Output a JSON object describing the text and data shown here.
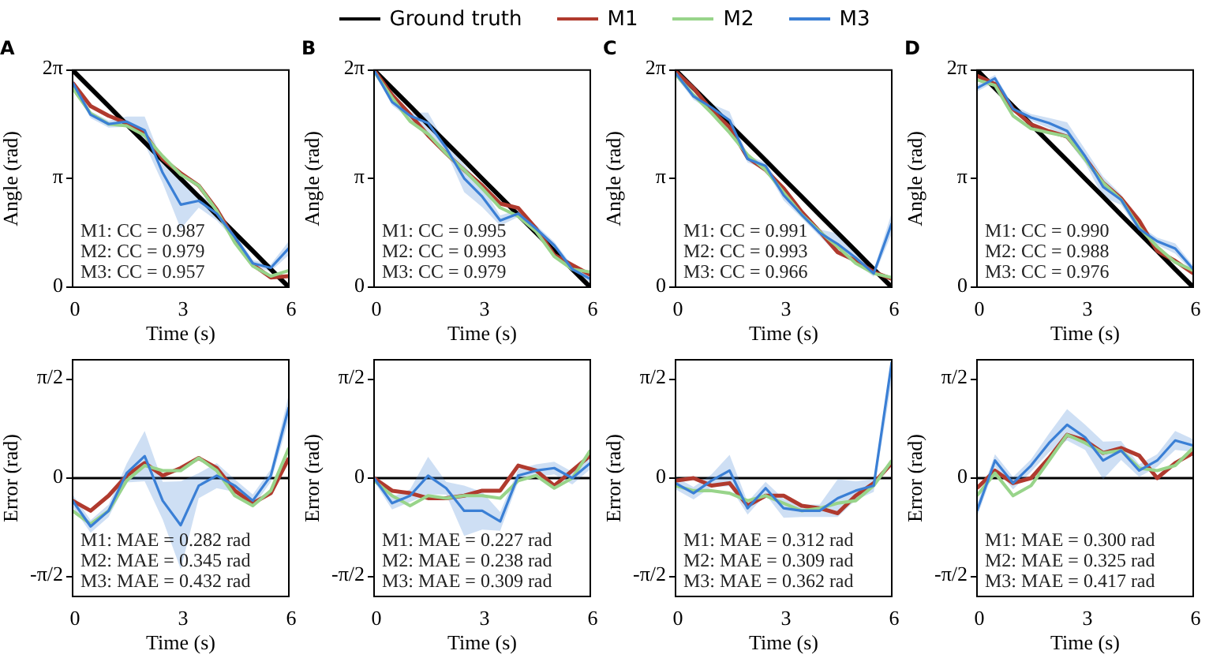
{
  "chart_data": [
    {
      "type": "line",
      "title": "A",
      "xlabel": "Time (s)",
      "ylabel": "Angle (rad)",
      "legend": "top",
      "x": [
        0,
        0.5,
        1,
        1.5,
        2,
        2.5,
        3,
        3.5,
        4,
        4.5,
        5,
        5.5,
        6
      ],
      "xlim": [
        0,
        6
      ],
      "xticks": [
        0,
        3,
        6
      ],
      "ylim": [
        0,
        6.283185
      ],
      "yticks": [
        {
          "value": 0,
          "label": "0"
        },
        {
          "value": 3.141593,
          "label": "π"
        },
        {
          "value": 6.283185,
          "label": "2π"
        }
      ],
      "grid": false,
      "series": [
        {
          "name": "Ground truth",
          "color": "#000000",
          "values": [
            6.28,
            5.76,
            5.24,
            4.71,
            4.19,
            3.67,
            3.14,
            2.62,
            2.09,
            1.57,
            1.05,
            0.52,
            0
          ]
        },
        {
          "name": "M1",
          "color": "#b03a2e",
          "values": [
            5.92,
            5.24,
            4.96,
            4.75,
            4.43,
            3.71,
            3.3,
            2.94,
            2.25,
            1.37,
            0.65,
            0.28,
            0.32
          ]
        },
        {
          "name": "M2",
          "color": "#98d48a",
          "values": [
            5.76,
            5.03,
            4.72,
            4.67,
            4.39,
            3.79,
            3.26,
            2.94,
            2.21,
            1.29,
            0.61,
            0.32,
            0.48
          ]
        },
        {
          "name": "M3",
          "color": "#3a7fd5",
          "values": [
            5.92,
            4.99,
            4.72,
            4.79,
            4.54,
            3.31,
            2.39,
            2.5,
            2.13,
            1.45,
            0.69,
            0.56,
            1.13
          ],
          "lower": [
            5.82,
            4.89,
            4.62,
            4.64,
            4.14,
            3.01,
            1.69,
            2.3,
            1.93,
            1.35,
            0.59,
            0.46,
            0.93
          ],
          "upper": [
            6.02,
            5.09,
            4.82,
            4.94,
            4.94,
            3.61,
            3.09,
            2.7,
            2.33,
            1.55,
            0.79,
            0.66,
            1.33
          ]
        }
      ],
      "annotations": [
        "M1: CC = 0.987",
        "M2: CC = 0.979",
        "M3: CC = 0.957"
      ]
    },
    {
      "type": "line",
      "title": "B",
      "xlabel": "Time (s)",
      "ylabel": "Angle (rad)",
      "x": [
        0,
        0.5,
        1,
        1.5,
        2,
        2.5,
        3,
        3.5,
        4,
        4.5,
        5,
        5.5,
        6
      ],
      "xlim": [
        0,
        6
      ],
      "xticks": [
        0,
        3,
        6
      ],
      "ylim": [
        0,
        6.283185
      ],
      "yticks": [
        {
          "value": 0,
          "label": "0"
        },
        {
          "value": 3.141593,
          "label": "π"
        },
        {
          "value": 6.283185,
          "label": "2π"
        }
      ],
      "grid": false,
      "series": [
        {
          "color": "#000000",
          "values": [
            6.28,
            5.76,
            5.24,
            4.71,
            4.19,
            3.67,
            3.14,
            2.62,
            2.09,
            1.57,
            1.05,
            0.52,
            0
          ]
        },
        {
          "color": "#b03a2e",
          "values": [
            6.28,
            5.56,
            5.0,
            4.39,
            3.87,
            3.39,
            2.94,
            2.42,
            2.29,
            1.69,
            0.93,
            0.64,
            0.36
          ]
        },
        {
          "color": "#98d48a",
          "values": [
            6.24,
            5.48,
            4.8,
            4.43,
            3.87,
            3.39,
            2.86,
            2.3,
            2.05,
            1.61,
            0.89,
            0.52,
            0.44
          ]
        },
        {
          "color": "#3a7fd5",
          "values": [
            6.28,
            5.36,
            4.96,
            4.75,
            4.03,
            3.15,
            2.62,
            1.93,
            2.13,
            1.69,
            1.21,
            0.52,
            0.24
          ],
          "lower": [
            6.23,
            5.26,
            4.86,
            4.45,
            3.93,
            2.75,
            2.32,
            1.78,
            2.03,
            1.59,
            1.11,
            0.42,
            0.14
          ],
          "upper": [
            6.28,
            5.46,
            5.06,
            5.05,
            4.13,
            3.55,
            2.92,
            2.08,
            2.23,
            1.79,
            1.31,
            0.62,
            0.34
          ]
        }
      ],
      "annotations": [
        "M1: CC = 0.995",
        "M2: CC = 0.993",
        "M3: CC = 0.979"
      ]
    },
    {
      "type": "line",
      "title": "C",
      "xlabel": "Time (s)",
      "ylabel": "Angle (rad)",
      "x": [
        0,
        0.5,
        1,
        1.5,
        2,
        2.5,
        3,
        3.5,
        4,
        4.5,
        5,
        5.5,
        6
      ],
      "xlim": [
        0,
        6
      ],
      "xticks": [
        0,
        3,
        6
      ],
      "ylim": [
        0,
        6.283185
      ],
      "yticks": [
        {
          "value": 0,
          "label": "0"
        },
        {
          "value": 3.141593,
          "label": "π"
        },
        {
          "value": 6.283185,
          "label": "2π"
        }
      ],
      "grid": false,
      "series": [
        {
          "color": "#000000",
          "values": [
            6.28,
            5.76,
            5.24,
            4.71,
            4.19,
            3.67,
            3.14,
            2.62,
            2.09,
            1.57,
            1.05,
            0.52,
            0
          ]
        },
        {
          "color": "#b03a2e",
          "values": [
            6.24,
            5.76,
            5.12,
            4.63,
            3.75,
            3.39,
            2.86,
            2.18,
            1.61,
            1.01,
            0.77,
            0.44,
            0.24
          ]
        },
        {
          "color": "#98d48a",
          "values": [
            6.16,
            5.56,
            5.04,
            4.47,
            3.83,
            3.39,
            2.74,
            2.1,
            1.61,
            1.17,
            0.69,
            0.4,
            0.28
          ]
        },
        {
          "color": "#3a7fd5",
          "values": [
            6.2,
            5.52,
            5.2,
            4.83,
            3.71,
            3.51,
            2.66,
            2.1,
            1.57,
            1.25,
            0.85,
            0.4,
            1.85
          ],
          "lower": [
            6.1,
            5.42,
            5.1,
            4.58,
            3.61,
            3.41,
            2.51,
            2.0,
            1.47,
            0.95,
            0.7,
            0.3,
            1.55
          ],
          "upper": [
            6.28,
            5.62,
            5.3,
            5.08,
            3.81,
            3.61,
            2.81,
            2.2,
            1.67,
            1.55,
            1.0,
            0.5,
            2.15
          ]
        }
      ],
      "annotations": [
        "M1: CC = 0.991",
        "M2: CC = 0.993",
        "M3: CC = 0.966"
      ]
    },
    {
      "type": "line",
      "title": "D",
      "xlabel": "Time (s)",
      "ylabel": "Angle (rad)",
      "x": [
        0,
        0.5,
        1,
        1.5,
        2,
        2.5,
        3,
        3.5,
        4,
        4.5,
        5,
        5.5,
        6
      ],
      "xlim": [
        0,
        6
      ],
      "xticks": [
        0,
        3,
        6
      ],
      "ylim": [
        0,
        6.283185
      ],
      "yticks": [
        {
          "value": 0,
          "label": "0"
        },
        {
          "value": 3.141593,
          "label": "π"
        },
        {
          "value": 6.283185,
          "label": "2π"
        }
      ],
      "grid": false,
      "series": [
        {
          "color": "#000000",
          "values": [
            6.28,
            5.76,
            5.24,
            4.71,
            4.19,
            3.67,
            3.14,
            2.62,
            2.09,
            1.57,
            1.05,
            0.52,
            0
          ]
        },
        {
          "color": "#b03a2e",
          "values": [
            6.12,
            5.88,
            5.16,
            4.71,
            4.51,
            4.36,
            3.74,
            3.02,
            2.57,
            1.93,
            1.05,
            0.76,
            0.4
          ]
        },
        {
          "color": "#98d48a",
          "values": [
            6.0,
            5.84,
            4.96,
            4.59,
            4.47,
            4.36,
            3.7,
            3.02,
            2.53,
            1.73,
            1.17,
            0.72,
            0.48
          ]
        },
        {
          "color": "#3a7fd5",
          "values": [
            5.76,
            6.04,
            5.16,
            4.91,
            4.75,
            4.52,
            3.79,
            2.9,
            2.53,
            1.69,
            1.33,
            1.12,
            0.52
          ],
          "lower": [
            5.66,
            5.94,
            5.06,
            4.81,
            4.6,
            4.27,
            3.59,
            2.6,
            2.38,
            1.59,
            1.23,
            0.97,
            0.42
          ],
          "upper": [
            5.86,
            6.14,
            5.26,
            5.01,
            4.9,
            4.77,
            3.99,
            3.2,
            2.68,
            1.79,
            1.43,
            1.27,
            0.62
          ]
        }
      ],
      "annotations": [
        "M1: CC = 0.990",
        "M2: CC = 0.988",
        "M3: CC = 0.976"
      ]
    },
    {
      "type": "line",
      "xlabel": "Time (s)",
      "ylabel": "Error (rad)",
      "x": [
        0,
        0.5,
        1,
        1.5,
        2,
        2.5,
        3,
        3.5,
        4,
        4.5,
        5,
        5.5,
        6
      ],
      "xlim": [
        0,
        6
      ],
      "xticks": [
        0,
        3,
        6
      ],
      "ylim": [
        -1.885,
        1.885
      ],
      "yticks": [
        {
          "value": -1.570796,
          "label": "-π/2"
        },
        {
          "value": 0,
          "label": "0"
        },
        {
          "value": 1.570796,
          "label": "π/2"
        }
      ],
      "grid": false,
      "ref_lines": [
        {
          "axis": "y",
          "value": 0,
          "color": "#000000"
        }
      ],
      "series": [
        {
          "color": "#b03a2e",
          "values": [
            -0.36,
            -0.52,
            -0.28,
            0.04,
            0.24,
            0.04,
            0.16,
            0.32,
            0.16,
            -0.2,
            -0.4,
            -0.24,
            0.32
          ]
        },
        {
          "color": "#98d48a",
          "values": [
            -0.52,
            -0.73,
            -0.52,
            -0.04,
            0.2,
            0.12,
            0.12,
            0.32,
            0.12,
            -0.28,
            -0.44,
            -0.2,
            0.48
          ]
        },
        {
          "color": "#3a7fd5",
          "values": [
            -0.36,
            -0.77,
            -0.52,
            0.08,
            0.35,
            -0.36,
            -0.75,
            -0.12,
            0.04,
            -0.12,
            -0.36,
            0.04,
            1.13
          ],
          "lower": [
            -0.46,
            -0.87,
            -0.62,
            -0.07,
            -0.05,
            -0.66,
            -1.45,
            -0.32,
            -0.16,
            -0.22,
            -0.46,
            -0.06,
            0.93
          ],
          "upper": [
            -0.26,
            -0.67,
            -0.42,
            0.23,
            0.75,
            -0.06,
            -0.05,
            0.08,
            0.24,
            -0.02,
            -0.26,
            0.14,
            1.33
          ]
        }
      ],
      "annotations": [
        "M1: MAE = 0.282 rad",
        "M2: MAE = 0.345 rad",
        "M3: MAE = 0.432 rad"
      ]
    },
    {
      "type": "line",
      "xlabel": "Time (s)",
      "ylabel": "Error (rad)",
      "x": [
        0,
        0.5,
        1,
        1.5,
        2,
        2.5,
        3,
        3.5,
        4,
        4.5,
        5,
        5.5,
        6
      ],
      "xlim": [
        0,
        6
      ],
      "xticks": [
        0,
        3,
        6
      ],
      "ylim": [
        -1.885,
        1.885
      ],
      "yticks": [
        {
          "value": -1.570796,
          "label": "-π/2"
        },
        {
          "value": 0,
          "label": "0"
        },
        {
          "value": 1.570796,
          "label": "π/2"
        }
      ],
      "grid": false,
      "ref_lines": [
        {
          "axis": "y",
          "value": 0,
          "color": "#000000"
        }
      ],
      "series": [
        {
          "color": "#b03a2e",
          "values": [
            0,
            -0.2,
            -0.24,
            -0.32,
            -0.32,
            -0.28,
            -0.2,
            -0.2,
            0.2,
            0.12,
            -0.12,
            0.12,
            0.36
          ]
        },
        {
          "color": "#98d48a",
          "values": [
            -0.04,
            -0.28,
            -0.44,
            -0.28,
            -0.32,
            -0.28,
            -0.28,
            -0.32,
            -0.04,
            0.04,
            -0.16,
            0,
            0.44
          ]
        },
        {
          "color": "#3a7fd5",
          "values": [
            0,
            -0.4,
            -0.28,
            0.04,
            -0.16,
            -0.52,
            -0.52,
            -0.69,
            0.04,
            0.12,
            0.16,
            0,
            0.24
          ],
          "lower": [
            -0.05,
            -0.5,
            -0.38,
            -0.26,
            -0.26,
            -0.92,
            -0.82,
            -0.84,
            -0.06,
            0.02,
            0.06,
            -0.1,
            0.14
          ],
          "upper": [
            0.05,
            -0.3,
            -0.18,
            0.34,
            -0.06,
            -0.12,
            -0.22,
            -0.54,
            0.14,
            0.22,
            0.26,
            0.1,
            0.34
          ]
        }
      ],
      "annotations": [
        "M1: MAE = 0.227 rad",
        "M2: MAE = 0.238 rad",
        "M3: MAE = 0.309 rad"
      ]
    },
    {
      "type": "line",
      "xlabel": "Time (s)",
      "ylabel": "Error (rad)",
      "x": [
        0,
        0.5,
        1,
        1.5,
        2,
        2.5,
        3,
        3.5,
        4,
        4.5,
        5,
        5.5,
        6
      ],
      "xlim": [
        0,
        6
      ],
      "xticks": [
        0,
        3,
        6
      ],
      "ylim": [
        -1.885,
        1.885
      ],
      "yticks": [
        {
          "value": -1.570796,
          "label": "-π/2"
        },
        {
          "value": 0,
          "label": "0"
        },
        {
          "value": 1.570796,
          "label": "π/2"
        }
      ],
      "grid": false,
      "ref_lines": [
        {
          "axis": "y",
          "value": 0,
          "color": "#000000"
        }
      ],
      "series": [
        {
          "color": "#b03a2e",
          "values": [
            -0.04,
            0,
            -0.12,
            -0.08,
            -0.44,
            -0.28,
            -0.28,
            -0.44,
            -0.48,
            -0.56,
            -0.28,
            -0.08,
            0.24
          ]
        },
        {
          "color": "#98d48a",
          "values": [
            -0.12,
            -0.2,
            -0.2,
            -0.24,
            -0.36,
            -0.28,
            -0.4,
            -0.52,
            -0.48,
            -0.4,
            -0.36,
            -0.12,
            0.28
          ]
        },
        {
          "color": "#3a7fd5",
          "values": [
            -0.08,
            -0.24,
            -0.04,
            0.12,
            -0.48,
            -0.16,
            -0.48,
            -0.52,
            -0.52,
            -0.32,
            -0.2,
            -0.12,
            1.85
          ],
          "lower": [
            -0.18,
            -0.34,
            -0.14,
            -0.13,
            -0.58,
            -0.26,
            -0.63,
            -0.62,
            -0.62,
            -0.62,
            -0.35,
            -0.22,
            1.55
          ],
          "upper": [
            0.02,
            -0.14,
            0.06,
            0.37,
            -0.38,
            -0.06,
            -0.33,
            -0.42,
            -0.42,
            -0.02,
            -0.05,
            -0.02,
            1.88
          ]
        }
      ],
      "annotations": [
        "M1: MAE = 0.312 rad",
        "M2: MAE = 0.309 rad",
        "M3: MAE = 0.362 rad"
      ]
    },
    {
      "type": "line",
      "xlabel": "Time (s)",
      "ylabel": "Error (rad)",
      "x": [
        0,
        0.5,
        1,
        1.5,
        2,
        2.5,
        3,
        3.5,
        4,
        4.5,
        5,
        5.5,
        6
      ],
      "xlim": [
        0,
        6
      ],
      "xticks": [
        0,
        3,
        6
      ],
      "ylim": [
        -1.885,
        1.885
      ],
      "yticks": [
        {
          "value": -1.570796,
          "label": "-π/2"
        },
        {
          "value": 0,
          "label": "0"
        },
        {
          "value": 1.570796,
          "label": "π/2"
        }
      ],
      "grid": false,
      "ref_lines": [
        {
          "axis": "y",
          "value": 0,
          "color": "#000000"
        }
      ],
      "series": [
        {
          "color": "#b03a2e",
          "values": [
            -0.16,
            0.12,
            -0.08,
            0,
            0.32,
            0.69,
            0.6,
            0.4,
            0.48,
            0.36,
            0,
            0.24,
            0.4
          ]
        },
        {
          "color": "#98d48a",
          "values": [
            -0.28,
            0.08,
            -0.28,
            -0.12,
            0.28,
            0.69,
            0.56,
            0.4,
            0.44,
            0.16,
            0.12,
            0.2,
            0.48
          ]
        },
        {
          "color": "#3a7fd5",
          "values": [
            -0.52,
            0.28,
            -0.08,
            0.2,
            0.56,
            0.85,
            0.65,
            0.28,
            0.44,
            0.12,
            0.28,
            0.6,
            0.52
          ],
          "lower": [
            -0.62,
            0.18,
            -0.18,
            0.1,
            0.41,
            0.6,
            0.45,
            -0.02,
            0.29,
            0.02,
            0.18,
            0.45,
            0.42
          ],
          "upper": [
            -0.42,
            0.38,
            0.02,
            0.3,
            0.71,
            1.1,
            0.85,
            0.58,
            0.59,
            0.22,
            0.38,
            0.75,
            0.62
          ]
        }
      ],
      "annotations": [
        "M1: MAE = 0.300 rad",
        "M2: MAE = 0.325 rad",
        "M3: MAE = 0.417 rad"
      ]
    }
  ]
}
